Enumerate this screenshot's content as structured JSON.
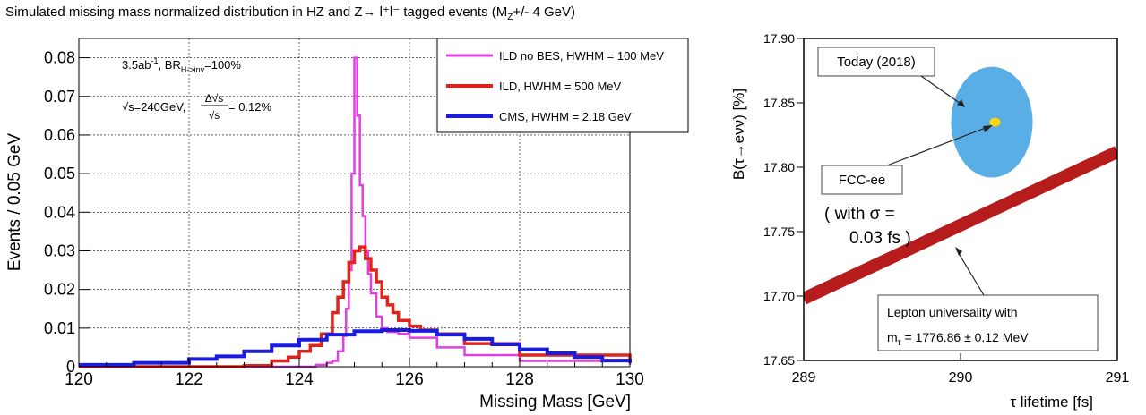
{
  "title": {
    "main": "Simulated missing mass normalized distribution in HZ and Z→ l⁺l⁻ tagged events (M",
    "sub": "Z",
    "tail": "+/- 4 GeV)"
  },
  "chart_data": [
    {
      "type": "line",
      "xlabel": "Missing Mass [GeV]",
      "ylabel": "Events / 0.05 GeV",
      "xlim": [
        120,
        130
      ],
      "ylim": [
        0,
        0.085
      ],
      "x_ticks": [
        "120",
        "122",
        "124",
        "126",
        "128",
        "130"
      ],
      "y_ticks": [
        "0",
        "0.01",
        "0.02",
        "0.03",
        "0.04",
        "0.05",
        "0.06",
        "0.07",
        "0.08"
      ],
      "grid": true,
      "legend_position": "top-right",
      "annotations": {
        "lumi": "3.5ab",
        "lumi_sup": "-1",
        "br": ", BR",
        "br_sub": "H->inv",
        "br_val": "=100%",
        "sqrt_s": "√s=240GeV, ",
        "frac_num": "Δ√s",
        "frac_den": "√s",
        "frac_val": " = 0.12%"
      },
      "series": [
        {
          "name": "ILD no BES, HWHM = 100 MeV",
          "color": "#e040e0",
          "x": [
            120.0,
            123.0,
            124.0,
            124.3,
            124.5,
            124.6,
            124.7,
            124.8,
            124.85,
            124.9,
            124.95,
            125.0,
            125.05,
            125.1,
            125.15,
            125.2,
            125.25,
            125.3,
            125.4,
            125.5,
            125.6,
            125.8,
            126.0,
            126.5,
            127.0,
            128.0,
            130.0
          ],
          "y": [
            0.0,
            0.0,
            0.0,
            0.0005,
            0.001,
            0.0015,
            0.004,
            0.008,
            0.015,
            0.025,
            0.05,
            0.08,
            0.065,
            0.047,
            0.039,
            0.03,
            0.024,
            0.019,
            0.013,
            0.01,
            0.009,
            0.0085,
            0.0075,
            0.005,
            0.003,
            0.0015,
            0.0005
          ]
        },
        {
          "name": "ILD, HWHM = 500 MeV",
          "color": "#e0241c",
          "x": [
            120.0,
            122.0,
            123.0,
            123.5,
            123.8,
            124.0,
            124.2,
            124.4,
            124.6,
            124.7,
            124.8,
            124.9,
            125.0,
            125.1,
            125.2,
            125.3,
            125.4,
            125.5,
            125.6,
            125.7,
            125.8,
            126.0,
            126.2,
            126.5,
            127.0,
            128.0,
            130.0
          ],
          "y": [
            0.0,
            0.0,
            0.0003,
            0.0015,
            0.0025,
            0.004,
            0.0055,
            0.0085,
            0.014,
            0.018,
            0.022,
            0.027,
            0.03,
            0.031,
            0.028,
            0.025,
            0.022,
            0.018,
            0.016,
            0.014,
            0.012,
            0.0105,
            0.0095,
            0.0085,
            0.006,
            0.003,
            0.001
          ]
        },
        {
          "name": "CMS, HWHM = 2.18 GeV",
          "color": "#1a1ae0",
          "x": [
            120.0,
            121.0,
            122.0,
            122.5,
            123.0,
            123.5,
            124.0,
            124.5,
            125.0,
            125.5,
            126.0,
            126.5,
            127.0,
            127.5,
            128.0,
            128.5,
            129.0,
            129.5,
            130.0
          ],
          "y": [
            0.0005,
            0.001,
            0.002,
            0.0027,
            0.004,
            0.0055,
            0.007,
            0.0083,
            0.0092,
            0.0095,
            0.0093,
            0.0083,
            0.0072,
            0.0058,
            0.0045,
            0.0035,
            0.0025,
            0.0016,
            0.001
          ]
        }
      ]
    },
    {
      "type": "scatter",
      "xlabel": "τ lifetime [fs]",
      "ylabel": "B(τ→eνν) [%]",
      "xlim": [
        289,
        291
      ],
      "ylim": [
        17.65,
        17.9
      ],
      "x_ticks": [
        "289",
        "290",
        "291"
      ],
      "y_ticks": [
        "17.65",
        "17.70",
        "17.75",
        "17.80",
        "17.85",
        "17.90"
      ],
      "today": {
        "label": "Today (2018)",
        "x": 290.2,
        "y": 17.835,
        "rx": 0.26,
        "ry": 0.043,
        "color": "#5aaee6"
      },
      "fcc": {
        "label": "FCC-ee",
        "note1": "( with σ =",
        "note2": "0.03 fs )",
        "x": 290.22,
        "y": 17.835,
        "color": "#ffd700"
      },
      "band": {
        "label1": "Lepton universality with",
        "label2a": "m",
        "label2sub": "τ",
        "label2b": " = 1776.86 ± 0.12 MeV",
        "x": [
          289,
          291
        ],
        "y": [
          17.698,
          17.812
        ],
        "color": "#b71c1c"
      }
    }
  ]
}
